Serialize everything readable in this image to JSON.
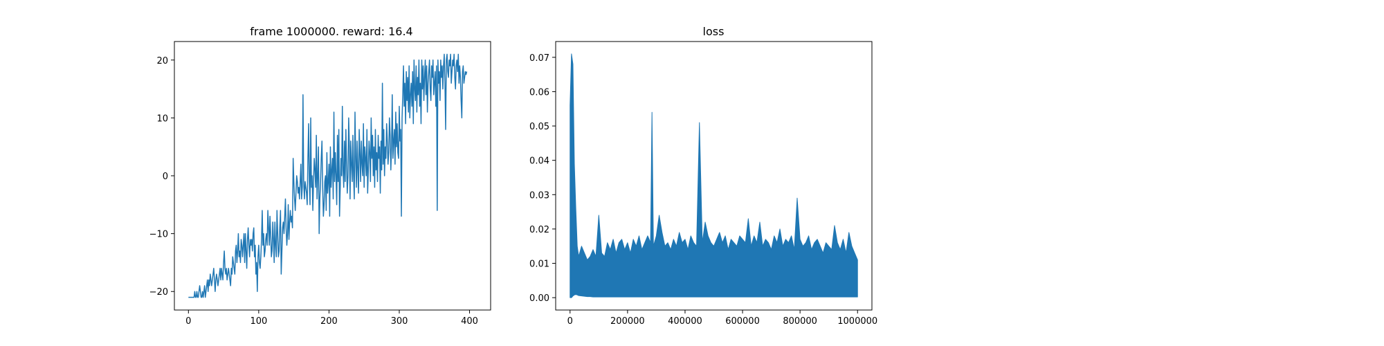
{
  "figure": {
    "background": "#ffffff",
    "line_color": "#1f77b4"
  },
  "chart_data": [
    {
      "type": "line",
      "title": "frame 1000000. reward: 16.4",
      "xlabel": "",
      "ylabel": "",
      "xlim": [
        -20,
        430
      ],
      "ylim": [
        -23.2,
        23.2
      ],
      "x_ticks": [
        0,
        100,
        200,
        300,
        400
      ],
      "x_tick_labels": [
        "0",
        "100",
        "200",
        "300",
        "400"
      ],
      "y_ticks": [
        -20,
        -10,
        0,
        10,
        20
      ],
      "y_tick_labels": [
        "−20",
        "−10",
        "0",
        "10",
        "20"
      ],
      "grid": false,
      "legend": "none",
      "series": [
        {
          "color": "#1f77b4",
          "values": [
            -21,
            -21,
            -21,
            -21,
            -21,
            -21,
            -21,
            -21,
            -21,
            -20,
            -21,
            -21,
            -20,
            -21,
            -21,
            -20,
            -19,
            -20,
            -21,
            -21,
            -20,
            -21,
            -20,
            -19,
            -21,
            -20,
            -19,
            -18,
            -20,
            -18,
            -19,
            -17,
            -18,
            -19,
            -18,
            -17,
            -16,
            -18,
            -20,
            -18,
            -17,
            -18,
            -19,
            -18,
            -17,
            -16,
            -18,
            -16,
            -17,
            -18,
            -15,
            -13,
            -16,
            -17,
            -16,
            -18,
            -17,
            -16,
            -17,
            -18,
            -19,
            -16,
            -17,
            -14,
            -15,
            -16,
            -17,
            -13,
            -12,
            -15,
            -13,
            -10,
            -14,
            -13,
            -15,
            -11,
            -12,
            -14,
            -12,
            -10,
            -15,
            -10,
            -13,
            -16,
            -11,
            -9,
            -12,
            -14,
            -11,
            -12,
            -11,
            -13,
            -10,
            -9,
            -14,
            -12,
            -17,
            -15,
            -20,
            -14,
            -12,
            -15,
            -16,
            -14,
            -11,
            -6,
            -12,
            -10,
            -14,
            -13,
            -11,
            -10,
            -12,
            -6,
            -9,
            -12,
            -7,
            -10,
            -14,
            -13,
            -8,
            -11,
            -15,
            -8,
            -12,
            -14,
            -6,
            -10,
            -14,
            -13,
            -9,
            -6,
            -17,
            -13,
            -9,
            -8,
            -10,
            -7,
            -4,
            -9,
            -12,
            -10,
            -5,
            -11,
            -8,
            -6,
            -8,
            -7,
            -9,
            3,
            -1,
            -4,
            -6,
            -3,
            0,
            -1,
            -3,
            -2,
            -4,
            -1,
            2,
            -4,
            -2,
            14,
            -1,
            -4,
            -1,
            -2,
            -3,
            -5,
            3,
            9,
            -1,
            -5,
            10,
            -2,
            0,
            -6,
            -1,
            3,
            1,
            -2,
            7,
            -4,
            0,
            5,
            -10,
            -4,
            -1,
            3,
            6,
            -2,
            -7,
            -5,
            -1,
            0,
            -6,
            4,
            -3,
            -1,
            2,
            -7,
            5,
            -2,
            1,
            3,
            -4,
            11,
            -1,
            4,
            0,
            -5,
            7,
            -1,
            8,
            -7,
            -2,
            3,
            0,
            12,
            1,
            -2,
            6,
            -1,
            8,
            2,
            -3,
            0,
            10,
            5,
            -4,
            6,
            2,
            -1,
            7,
            0,
            -4,
            11,
            3,
            -2,
            6,
            1,
            -3,
            8,
            4,
            -1,
            6,
            2,
            0,
            9,
            -2,
            5,
            3,
            0,
            8,
            -3,
            1,
            6,
            4,
            -1,
            10,
            3,
            7,
            0,
            5,
            -2,
            8,
            1,
            4,
            -1,
            7,
            3,
            5,
            -3,
            6,
            1,
            16,
            2,
            8,
            0,
            5,
            3,
            9,
            6,
            2,
            4,
            10,
            7,
            1,
            5,
            14,
            3,
            6,
            8,
            2,
            11,
            5,
            9,
            4,
            3,
            12,
            6,
            8,
            -7,
            10,
            14,
            19,
            12,
            16,
            9,
            18,
            13,
            17,
            11,
            19,
            10,
            14,
            16,
            12,
            18,
            9,
            20,
            15,
            13,
            19,
            11,
            17,
            14,
            20,
            12,
            16,
            9,
            20,
            15,
            19,
            13,
            17,
            20,
            14,
            19,
            11,
            16,
            18,
            20,
            15,
            13,
            19,
            17,
            20,
            14,
            16,
            18,
            12,
            19,
            -6,
            20,
            16,
            18,
            13,
            20,
            17,
            19,
            15,
            19,
            21,
            16,
            8,
            20,
            21,
            18,
            17,
            20,
            19,
            21,
            16,
            18,
            20,
            19,
            21,
            17,
            15,
            19,
            20,
            18,
            21,
            16,
            19,
            17,
            13,
            10,
            18,
            19,
            16,
            17,
            18,
            17.5,
            18
          ]
        }
      ]
    },
    {
      "type": "area",
      "title": "loss",
      "xlabel": "",
      "ylabel": "",
      "xlim": [
        -50000,
        1050000
      ],
      "ylim": [
        -0.0036,
        0.0746
      ],
      "x_ticks": [
        0,
        200000,
        400000,
        600000,
        800000,
        1000000
      ],
      "x_tick_labels": [
        "0",
        "200000",
        "400000",
        "600000",
        "800000",
        "1000000"
      ],
      "y_ticks": [
        0,
        0.01,
        0.02,
        0.03,
        0.04,
        0.05,
        0.06,
        0.07
      ],
      "y_tick_labels": [
        "0.00",
        "0.01",
        "0.02",
        "0.03",
        "0.04",
        "0.05",
        "0.06",
        "0.07"
      ],
      "grid": false,
      "legend": "none",
      "series": [
        {
          "color": "#1f77b4",
          "x": [
            0,
            5000,
            10000,
            15000,
            20000,
            25000,
            30000,
            40000,
            50000,
            60000,
            70000,
            80000,
            90000,
            100000,
            110000,
            120000,
            130000,
            140000,
            150000,
            160000,
            170000,
            180000,
            190000,
            200000,
            210000,
            220000,
            230000,
            240000,
            250000,
            260000,
            270000,
            280000,
            285000,
            290000,
            300000,
            310000,
            320000,
            330000,
            340000,
            350000,
            360000,
            370000,
            380000,
            390000,
            400000,
            410000,
            420000,
            430000,
            440000,
            450000,
            460000,
            470000,
            480000,
            490000,
            500000,
            510000,
            520000,
            530000,
            540000,
            550000,
            560000,
            570000,
            580000,
            590000,
            600000,
            610000,
            620000,
            630000,
            640000,
            650000,
            660000,
            670000,
            680000,
            690000,
            700000,
            710000,
            720000,
            730000,
            740000,
            750000,
            760000,
            770000,
            780000,
            790000,
            800000,
            810000,
            820000,
            830000,
            840000,
            850000,
            860000,
            870000,
            880000,
            890000,
            900000,
            910000,
            920000,
            930000,
            940000,
            950000,
            960000,
            970000,
            980000,
            990000,
            1000000
          ],
          "upper": [
            0.056,
            0.071,
            0.068,
            0.039,
            0.026,
            0.015,
            0.012,
            0.015,
            0.013,
            0.011,
            0.012,
            0.014,
            0.012,
            0.024,
            0.013,
            0.012,
            0.016,
            0.014,
            0.017,
            0.013,
            0.016,
            0.017,
            0.014,
            0.016,
            0.013,
            0.017,
            0.015,
            0.018,
            0.014,
            0.016,
            0.018,
            0.016,
            0.054,
            0.015,
            0.018,
            0.024,
            0.019,
            0.015,
            0.016,
            0.014,
            0.017,
            0.015,
            0.019,
            0.016,
            0.017,
            0.014,
            0.018,
            0.016,
            0.015,
            0.051,
            0.016,
            0.022,
            0.018,
            0.016,
            0.015,
            0.017,
            0.019,
            0.016,
            0.018,
            0.014,
            0.017,
            0.016,
            0.015,
            0.018,
            0.017,
            0.016,
            0.023,
            0.015,
            0.018,
            0.016,
            0.022,
            0.015,
            0.017,
            0.016,
            0.014,
            0.018,
            0.016,
            0.02,
            0.015,
            0.017,
            0.016,
            0.018,
            0.014,
            0.029,
            0.017,
            0.015,
            0.016,
            0.018,
            0.014,
            0.016,
            0.017,
            0.015,
            0.013,
            0.016,
            0.015,
            0.014,
            0.021,
            0.016,
            0.014,
            0.017,
            0.013,
            0.019,
            0.015,
            0.013,
            0.011
          ],
          "lower": [
            0.0,
            0.0,
            0.0005,
            0.0008,
            0.0009,
            0.0008,
            0.0006,
            0.0005,
            0.0004,
            0.0003,
            0.0003,
            0.0002,
            0.0002,
            0.0002,
            0.0002,
            0.0002,
            0.0002,
            0.0002,
            0.0002,
            0.0002,
            0.0002,
            0.0002,
            0.0002,
            0.0002,
            0.0002,
            0.0002,
            0.0002,
            0.0002,
            0.0002,
            0.0002,
            0.0002,
            0.0002,
            0.0002,
            0.0002,
            0.0002,
            0.0002,
            0.0002,
            0.0002,
            0.0002,
            0.0002,
            0.0002,
            0.0002,
            0.0002,
            0.0002,
            0.0002,
            0.0002,
            0.0002,
            0.0002,
            0.0002,
            0.0002,
            0.0002,
            0.0002,
            0.0002,
            0.0002,
            0.0002,
            0.0002,
            0.0002,
            0.0002,
            0.0002,
            0.0002,
            0.0002,
            0.0002,
            0.0002,
            0.0002,
            0.0002,
            0.0002,
            0.0002,
            0.0002,
            0.0002,
            0.0002,
            0.0002,
            0.0002,
            0.0002,
            0.0002,
            0.0002,
            0.0002,
            0.0002,
            0.0002,
            0.0002,
            0.0002,
            0.0002,
            0.0002,
            0.0002,
            0.0002,
            0.0002,
            0.0002,
            0.0002,
            0.0002,
            0.0002,
            0.0002,
            0.0002,
            0.0002,
            0.0002,
            0.0002,
            0.0002,
            0.0002,
            0.0002,
            0.0002,
            0.0002,
            0.0002,
            0.0002,
            0.0002,
            0.0002,
            0.0002,
            0.0002
          ]
        }
      ]
    }
  ]
}
